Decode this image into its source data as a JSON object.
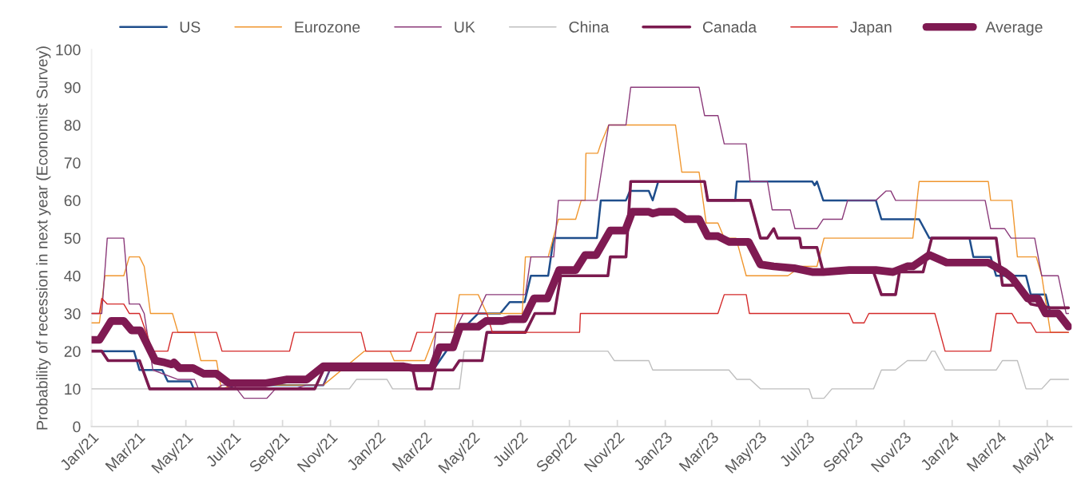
{
  "chart_data": {
    "type": "line",
    "ylabel": "Probability of recession in next year (Economist Survey)",
    "xlim": [
      "2021-01-01",
      "2024-06-01"
    ],
    "xticks": [
      {
        "value": "2021-01-01",
        "label": "Jan/21"
      },
      {
        "value": "2021-03-01",
        "label": "Mar/21"
      },
      {
        "value": "2021-05-01",
        "label": "May/21"
      },
      {
        "value": "2021-07-01",
        "label": "Jul/21"
      },
      {
        "value": "2021-09-01",
        "label": "Sep/21"
      },
      {
        "value": "2021-11-01",
        "label": "Nov/21"
      },
      {
        "value": "2022-01-01",
        "label": "Jan/22"
      },
      {
        "value": "2022-03-01",
        "label": "Mar/22"
      },
      {
        "value": "2022-05-01",
        "label": "May/22"
      },
      {
        "value": "2022-07-01",
        "label": "Jul/22"
      },
      {
        "value": "2022-09-01",
        "label": "Sep/22"
      },
      {
        "value": "2022-11-01",
        "label": "Nov/22"
      },
      {
        "value": "2023-01-01",
        "label": "Jan/23"
      },
      {
        "value": "2023-03-01",
        "label": "Mar/23"
      },
      {
        "value": "2023-05-01",
        "label": "May/23"
      },
      {
        "value": "2023-07-01",
        "label": "Jul/23"
      },
      {
        "value": "2023-09-01",
        "label": "Sep/23"
      },
      {
        "value": "2023-11-01",
        "label": "Nov/23"
      },
      {
        "value": "2024-01-01",
        "label": "Jan/24"
      },
      {
        "value": "2024-03-01",
        "label": "Mar/24"
      },
      {
        "value": "2024-05-01",
        "label": "May/24"
      }
    ],
    "ylim": [
      0,
      100
    ],
    "yticks": [
      0,
      10,
      20,
      30,
      40,
      50,
      60,
      70,
      80,
      90,
      100
    ],
    "grid": false,
    "legend": "top",
    "marker": "none",
    "line_style": "solid",
    "series": [
      {
        "name": "US",
        "color": "#1f4e8c",
        "x": [
          "2021-01-01",
          "2021-02-24",
          "2021-03-03",
          "2021-04-01",
          "2021-04-08",
          "2021-05-07",
          "2021-05-11",
          "2021-06-25",
          "2021-07-01",
          "2021-10-23",
          "2021-11-01",
          "2022-02-28",
          "2022-03-15",
          "2022-04-14",
          "2022-05-08",
          "2022-06-05",
          "2022-06-17",
          "2022-07-06",
          "2022-07-14",
          "2022-08-05",
          "2022-08-12",
          "2022-10-06",
          "2022-10-11",
          "2022-11-12",
          "2022-11-17",
          "2022-12-11",
          "2022-12-16",
          "2022-12-23",
          "2023-02-20",
          "2023-02-24",
          "2023-03-31",
          "2023-04-02",
          "2023-07-07",
          "2023-07-10",
          "2023-07-13",
          "2023-07-21",
          "2023-09-26",
          "2023-10-03",
          "2023-11-20",
          "2023-12-03",
          "2024-01-23",
          "2024-01-28",
          "2024-02-19",
          "2024-02-26",
          "2024-04-04",
          "2024-04-10",
          "2024-04-29",
          "2024-05-05",
          "2024-05-15",
          "2024-05-28"
        ],
        "values": [
          20,
          20,
          15,
          15,
          12,
          12,
          10,
          10,
          11,
          11,
          15.5,
          15.5,
          16,
          25,
          30,
          30,
          33,
          33,
          40,
          40,
          50,
          50,
          60,
          60,
          62.5,
          62.5,
          60,
          65,
          65,
          60,
          60,
          65,
          65,
          64,
          65,
          60,
          60,
          55,
          55,
          50,
          50,
          45,
          45,
          40,
          40,
          35,
          35,
          30,
          30,
          27.5
        ]
      },
      {
        "name": "Eurozone",
        "color": "#f0962e",
        "x": [
          "2021-01-01",
          "2021-01-11",
          "2021-01-18",
          "2021-02-11",
          "2021-02-18",
          "2021-03-03",
          "2021-03-09",
          "2021-03-17",
          "2021-04-14",
          "2021-04-21",
          "2021-05-12",
          "2021-05-20",
          "2021-06-09",
          "2021-06-15",
          "2021-07-01",
          "2021-10-23",
          "2021-11-01",
          "2021-12-10",
          "2021-12-14",
          "2022-01-16",
          "2022-01-21",
          "2022-03-01",
          "2022-03-15",
          "2022-04-07",
          "2022-04-14",
          "2022-05-08",
          "2022-05-19",
          "2022-07-03",
          "2022-07-07",
          "2022-08-05",
          "2022-08-18",
          "2022-09-09",
          "2022-09-16",
          "2022-09-21",
          "2022-09-22",
          "2022-10-07",
          "2022-10-11",
          "2022-10-21",
          "2023-01-14",
          "2023-01-22",
          "2023-02-13",
          "2023-02-22",
          "2023-03-09",
          "2023-03-17",
          "2023-04-01",
          "2023-04-14",
          "2023-06-06",
          "2023-06-23",
          "2023-07-13",
          "2023-07-22",
          "2023-11-12",
          "2023-11-20",
          "2024-02-16",
          "2024-02-19",
          "2024-03-17",
          "2024-03-24",
          "2024-04-17",
          "2024-04-24",
          "2024-05-05",
          "2024-05-28"
        ],
        "values": [
          27.5,
          27.5,
          40,
          40,
          45,
          45,
          42.5,
          30,
          30,
          25,
          25,
          17.5,
          17.5,
          10,
          11,
          11,
          null,
          null,
          20,
          20,
          17.5,
          17.5,
          25,
          25,
          35,
          35,
          30,
          30,
          45,
          45,
          55,
          55,
          60,
          60,
          72.5,
          72.5,
          75,
          80,
          80,
          67.5,
          67.5,
          54,
          54,
          50,
          50,
          40,
          40,
          42.5,
          42.5,
          50,
          50,
          65,
          65,
          60,
          60,
          45,
          45,
          40,
          25,
          25
        ]
      },
      {
        "name": "UK",
        "color": "#8b3a7a",
        "x": [
          "2021-01-01",
          "2021-01-14",
          "2021-01-21",
          "2021-02-11",
          "2021-02-18",
          "2021-03-03",
          "2021-03-09",
          "2021-03-20",
          "2021-04-21",
          "2021-05-12",
          "2021-05-17",
          "2021-06-09",
          "2021-06-16",
          "2021-07-01",
          "2021-07-14",
          "2021-08-12",
          "2021-08-23",
          "2021-09-16",
          "2021-10-01",
          "2021-10-23",
          "2021-11-01",
          "2022-03-10",
          "2022-03-15",
          "2022-04-07",
          "2022-04-19",
          "2022-05-07",
          "2022-05-18",
          "2022-07-07",
          "2022-07-14",
          "2022-08-12",
          "2022-08-18",
          "2022-10-06",
          "2022-10-21",
          "2022-11-12",
          "2022-11-18",
          "2023-02-13",
          "2023-02-20",
          "2023-03-09",
          "2023-03-17",
          "2023-04-14",
          "2023-04-19",
          "2023-05-11",
          "2023-05-17",
          "2023-06-09",
          "2023-06-15",
          "2023-07-13",
          "2023-07-21",
          "2023-08-14",
          "2023-08-21",
          "2023-09-26",
          "2023-10-09",
          "2023-10-15",
          "2023-10-21",
          "2024-02-12",
          "2024-02-19",
          "2024-03-08",
          "2024-03-16",
          "2024-04-15",
          "2024-04-24",
          "2024-05-15",
          "2024-05-25",
          "2024-05-28"
        ],
        "values": [
          30,
          30,
          50,
          50,
          32.5,
          32.5,
          30,
          15,
          12.5,
          12.5,
          10,
          10,
          11,
          11,
          7.5,
          7.5,
          10,
          10,
          11,
          11,
          15.5,
          15.5,
          25,
          25,
          30,
          30,
          35,
          35,
          45,
          45,
          60,
          60,
          80,
          80,
          90,
          90,
          82.5,
          82.5,
          75,
          75,
          65,
          65,
          57.5,
          57.5,
          52.5,
          52.5,
          55,
          55,
          60,
          60,
          62.5,
          62.5,
          60,
          60,
          52.5,
          52.5,
          50,
          50,
          40,
          40,
          30,
          30
        ]
      },
      {
        "name": "China",
        "color": "#bfbfbf",
        "x": [
          "2021-01-01",
          "2021-11-25",
          "2021-12-04",
          "2022-01-12",
          "2022-01-19",
          "2022-04-14",
          "2022-04-20",
          "2022-10-20",
          "2022-10-28",
          "2022-12-11",
          "2022-12-16",
          "2023-03-23",
          "2023-04-02",
          "2023-04-19",
          "2023-05-02",
          "2023-07-03",
          "2023-07-07",
          "2023-07-22",
          "2023-08-01",
          "2023-09-23",
          "2023-10-03",
          "2023-10-21",
          "2023-11-05",
          "2023-11-29",
          "2023-12-06",
          "2023-12-10",
          "2023-12-23",
          "2024-02-26",
          "2024-03-05",
          "2024-03-24",
          "2024-04-04",
          "2024-04-24",
          "2024-05-05",
          "2024-05-28"
        ],
        "values": [
          10,
          10,
          12.5,
          12.5,
          10,
          10,
          20,
          20,
          17.5,
          17.5,
          15,
          15,
          12.5,
          12.5,
          10,
          10,
          7.5,
          7.5,
          10,
          10,
          15,
          15,
          17.5,
          17.5,
          20,
          20,
          15,
          15,
          17.5,
          17.5,
          10,
          10,
          12.5,
          12.5
        ]
      },
      {
        "name": "Canada",
        "color": "#7b1a4f",
        "x": [
          "2021-01-01",
          "2021-01-14",
          "2021-01-22",
          "2021-03-03",
          "2021-03-16",
          "2021-10-12",
          "2021-10-23",
          "2022-02-14",
          "2022-02-19",
          "2022-03-10",
          "2022-03-15",
          "2022-04-06",
          "2022-04-14",
          "2022-05-13",
          "2022-05-19",
          "2022-07-07",
          "2022-07-19",
          "2022-08-13",
          "2022-08-21",
          "2022-10-20",
          "2022-10-23",
          "2022-11-12",
          "2022-11-18",
          "2023-02-20",
          "2023-02-24",
          "2023-04-19",
          "2023-05-02",
          "2023-05-11",
          "2023-05-19",
          "2023-05-24",
          "2023-06-21",
          "2023-06-23",
          "2023-07-13",
          "2023-07-21",
          "2023-09-23",
          "2023-10-03",
          "2023-10-21",
          "2023-10-26",
          "2023-11-25",
          "2023-12-06",
          "2024-02-26",
          "2024-03-05",
          "2024-03-22",
          "2024-04-10",
          "2024-05-05",
          "2024-05-28"
        ],
        "values": [
          20,
          20,
          17.5,
          17.5,
          10,
          10,
          15,
          15,
          10,
          10,
          15,
          15,
          17.5,
          17.5,
          25,
          25,
          30,
          30,
          40,
          40,
          45,
          45,
          65,
          65,
          60,
          60,
          50,
          50,
          52.5,
          50,
          50,
          47.5,
          47.5,
          41,
          41,
          35,
          35,
          41,
          41,
          50,
          50,
          37.5,
          37.5,
          32.5,
          31.5,
          31.5
        ]
      },
      {
        "name": "Japan",
        "color": "#d42a2a",
        "x": [
          "2021-01-01",
          "2021-01-11",
          "2021-01-14",
          "2021-01-21",
          "2021-02-11",
          "2021-02-18",
          "2021-03-03",
          "2021-03-20",
          "2021-04-08",
          "2021-04-14",
          "2021-06-09",
          "2021-06-16",
          "2021-09-10",
          "2021-09-16",
          "2021-12-10",
          "2021-12-16",
          "2022-02-11",
          "2022-02-19",
          "2022-03-10",
          "2022-03-15",
          "2022-05-19",
          "2022-05-26",
          "2022-09-14",
          "2022-09-15",
          "2023-03-09",
          "2023-03-17",
          "2023-04-14",
          "2023-04-18",
          "2023-08-23",
          "2023-08-28",
          "2023-09-11",
          "2023-09-17",
          "2023-12-10",
          "2023-12-23",
          "2024-02-19",
          "2024-02-26",
          "2024-03-17",
          "2024-03-24",
          "2024-04-10",
          "2024-04-17",
          "2024-05-28"
        ],
        "values": [
          30,
          30,
          34,
          32.5,
          32.5,
          30,
          30,
          20,
          20,
          25,
          25,
          20,
          20,
          25,
          25,
          20,
          20,
          25,
          25,
          30,
          30,
          25,
          25,
          30,
          30,
          35,
          35,
          30,
          30,
          27.5,
          27.5,
          30,
          30,
          20,
          20,
          30,
          30,
          27.5,
          27.5,
          25,
          25
        ]
      },
      {
        "name": "Average",
        "color": "#7f1a52",
        "x": [
          "2021-01-01",
          "2021-01-11",
          "2021-01-26",
          "2021-02-11",
          "2021-02-21",
          "2021-03-04",
          "2021-03-23",
          "2021-04-04",
          "2021-04-13",
          "2021-04-16",
          "2021-04-23",
          "2021-05-10",
          "2021-05-24",
          "2021-06-09",
          "2021-06-25",
          "2021-08-11",
          "2021-09-07",
          "2021-10-02",
          "2021-10-23",
          "2022-02-01",
          "2022-02-14",
          "2022-03-10",
          "2022-03-20",
          "2022-04-06",
          "2022-04-15",
          "2022-05-08",
          "2022-05-18",
          "2022-06-08",
          "2022-06-17",
          "2022-07-05",
          "2022-07-18",
          "2022-08-04",
          "2022-08-19",
          "2022-09-09",
          "2022-09-21",
          "2022-10-05",
          "2022-10-23",
          "2022-11-11",
          "2022-11-20",
          "2022-12-11",
          "2022-12-16",
          "2022-12-25",
          "2023-01-13",
          "2023-01-27",
          "2023-02-13",
          "2023-02-24",
          "2023-03-09",
          "2023-03-23",
          "2023-04-17",
          "2023-05-02",
          "2023-05-19",
          "2023-06-14",
          "2023-07-07",
          "2023-07-21",
          "2023-08-23",
          "2023-09-26",
          "2023-10-18",
          "2023-11-05",
          "2023-11-12",
          "2023-12-03",
          "2023-12-25",
          "2024-02-16",
          "2024-03-08",
          "2024-03-17",
          "2024-04-06",
          "2024-04-19",
          "2024-04-29",
          "2024-05-15",
          "2024-05-28"
        ],
        "values": [
          23,
          23,
          28,
          28,
          25.5,
          25.5,
          17.5,
          17,
          16.5,
          17,
          15.5,
          15.5,
          14,
          14,
          11.5,
          11.5,
          12.5,
          12.5,
          16,
          16,
          15.5,
          15.5,
          21,
          21,
          26.5,
          26.5,
          28,
          28,
          28.5,
          28.5,
          34,
          34,
          41.5,
          41.5,
          45.5,
          45.5,
          52,
          52,
          57,
          57,
          56.5,
          57,
          57,
          55,
          55,
          50.5,
          50.5,
          49,
          49,
          43,
          42.5,
          42,
          41,
          41,
          41.5,
          41.5,
          41,
          42.5,
          42.5,
          45.5,
          43.5,
          43.5,
          41,
          39.5,
          34,
          34,
          30,
          30,
          26.5
        ]
      }
    ]
  }
}
